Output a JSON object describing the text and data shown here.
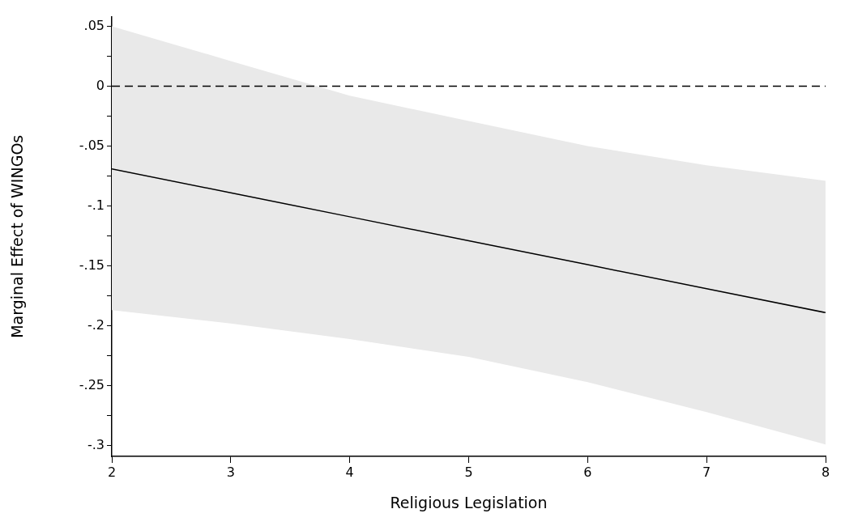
{
  "chart_data": {
    "type": "line",
    "xlabel": "Religious Legislation",
    "ylabel": "Marginal Effect of WINGOs",
    "x": [
      2,
      3,
      4,
      5,
      6,
      7,
      8
    ],
    "series": [
      {
        "color": "#000000",
        "values": [
          -0.069,
          -0.089,
          -0.109,
          -0.129,
          -0.149,
          -0.169,
          -0.189
        ],
        "lower": [
          -0.187,
          -0.198,
          -0.211,
          -0.226,
          -0.247,
          -0.272,
          -0.299
        ],
        "upper": [
          0.05,
          0.021,
          -0.008,
          -0.029,
          -0.05,
          -0.066,
          -0.079
        ]
      }
    ],
    "xlim": [
      2,
      8
    ],
    "xticks": [
      2,
      3,
      4,
      5,
      6,
      7,
      8
    ],
    "ylim": [
      -0.309,
      0.058
    ],
    "yticks": [
      {
        "value": -0.3,
        "label": "-.3"
      },
      {
        "value": -0.275,
        "label": null
      },
      {
        "value": -0.25,
        "label": "-.25"
      },
      {
        "value": -0.225,
        "label": null
      },
      {
        "value": -0.2,
        "label": "-.2"
      },
      {
        "value": -0.175,
        "label": null
      },
      {
        "value": -0.15,
        "label": "-.15"
      },
      {
        "value": -0.125,
        "label": null
      },
      {
        "value": -0.1,
        "label": "-.1"
      },
      {
        "value": -0.075,
        "label": null
      },
      {
        "value": -0.05,
        "label": "-.05"
      },
      {
        "value": -0.025,
        "label": null
      },
      {
        "value": 0,
        "label": "0"
      },
      {
        "value": 0.025,
        "label": null
      },
      {
        "value": 0.05,
        "label": ".05"
      }
    ],
    "ref_lines": [
      {
        "axis": "y",
        "value": 0,
        "color": "#000000",
        "line_style": "dashed"
      }
    ],
    "grid": false,
    "legend": false,
    "marker": "none",
    "line_style": "solid"
  }
}
